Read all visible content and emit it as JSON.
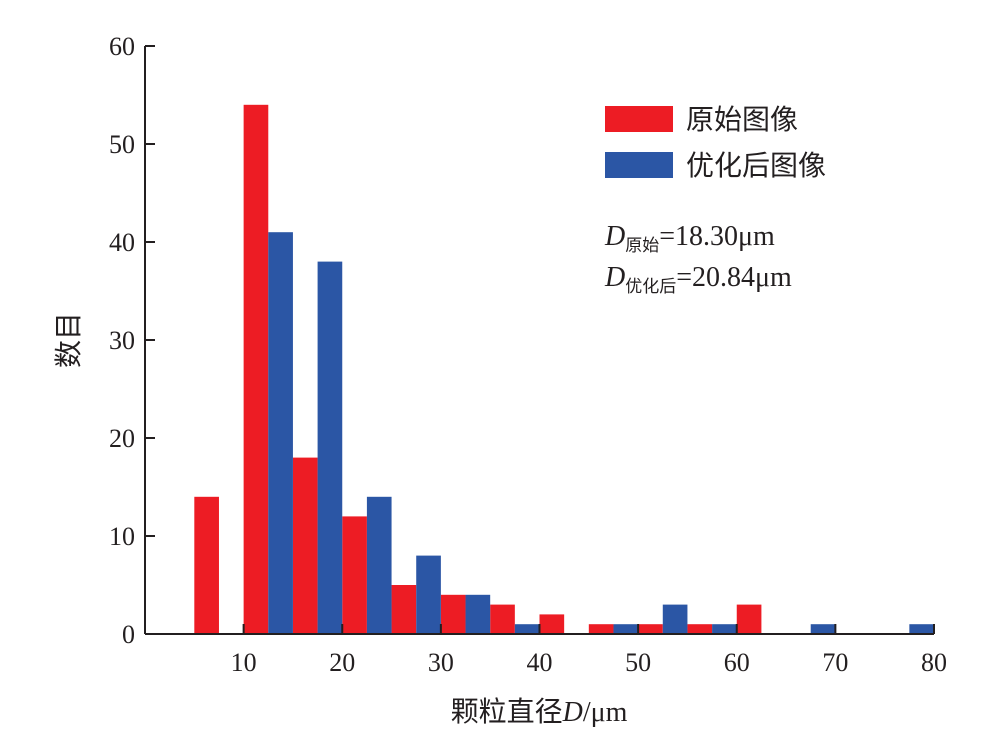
{
  "chart_data": {
    "type": "bar",
    "title": "",
    "xlabel": "颗粒直径D/μm",
    "xlabel_prefix": "颗粒直径",
    "xlabel_var": "D",
    "xlabel_unit": "/μm",
    "ylabel": "数目",
    "xlim": [
      0,
      80
    ],
    "ylim": [
      0,
      60
    ],
    "xticks": [
      10,
      20,
      30,
      40,
      50,
      60,
      70,
      80
    ],
    "yticks": [
      0,
      10,
      20,
      30,
      40,
      50,
      60
    ],
    "bin_width": 5,
    "grid": false,
    "legend_position": "top-right",
    "series": [
      {
        "name": "原始图像",
        "color": "#ed1c24",
        "x": [
          7.5,
          12.5,
          17.5,
          22.5,
          27.5,
          32.5,
          37.5,
          42.5,
          47.5,
          52.5,
          57.5,
          62.5,
          67.5,
          72.5,
          77.5
        ],
        "values": [
          14,
          54,
          18,
          12,
          5,
          4,
          3,
          2,
          1,
          1,
          1,
          3,
          0,
          0,
          0
        ]
      },
      {
        "name": "优化后图像",
        "color": "#2b56a5",
        "x": [
          7.5,
          12.5,
          17.5,
          22.5,
          27.5,
          32.5,
          37.5,
          42.5,
          47.5,
          52.5,
          57.5,
          62.5,
          67.5,
          72.5,
          77.5
        ],
        "values": [
          0,
          41,
          38,
          14,
          8,
          4,
          1,
          0,
          1,
          3,
          1,
          0,
          1,
          0,
          1
        ]
      }
    ],
    "annotations": [
      {
        "var": "D",
        "sub": "原始",
        "rest": "=18.30μm"
      },
      {
        "var": "D",
        "sub": "优化后",
        "rest": "=20.84μm"
      }
    ]
  }
}
